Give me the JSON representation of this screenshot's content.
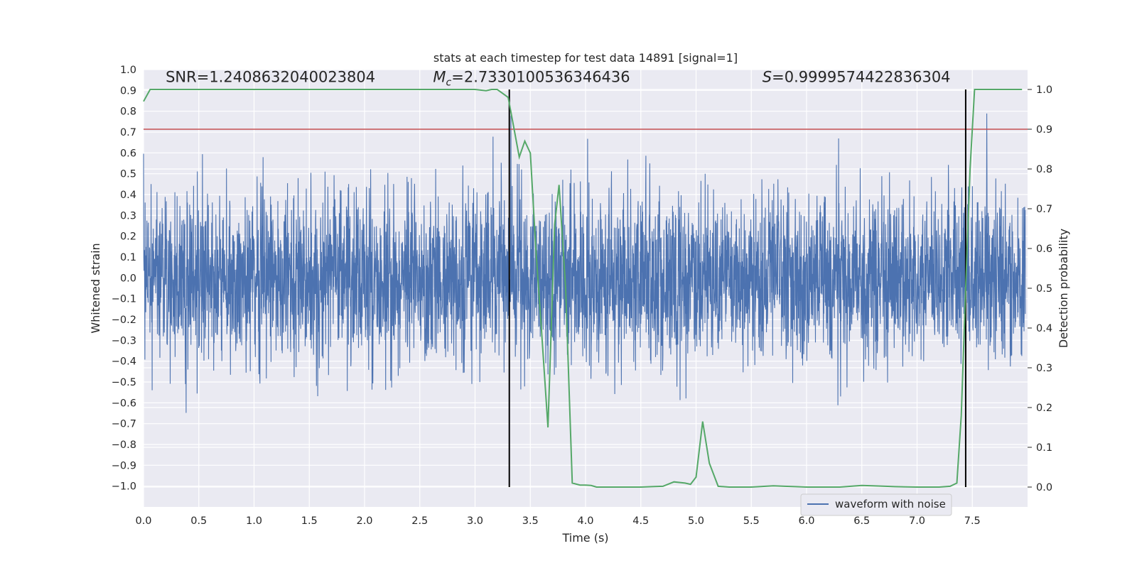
{
  "chart_data": {
    "type": "line",
    "title": "stats at each timestep for test data 14891 [signal=1]",
    "xlabel": "Time (s)",
    "ylabel": "Whitened strain",
    "ylabel_right": "Detection probability",
    "xlim": [
      0.0,
      8.0
    ],
    "ylim": [
      -1.1,
      1.0
    ],
    "ylim_right": [
      -0.05,
      1.05
    ],
    "x_ticks": [
      "0.0",
      "0.5",
      "1.0",
      "1.5",
      "2.0",
      "2.5",
      "3.0",
      "3.5",
      "4.0",
      "4.5",
      "5.0",
      "5.5",
      "6.0",
      "6.5",
      "7.0",
      "7.5"
    ],
    "x_tick_values": [
      0.0,
      0.5,
      1.0,
      1.5,
      2.0,
      2.5,
      3.0,
      3.5,
      4.0,
      4.5,
      5.0,
      5.5,
      6.0,
      6.5,
      7.0,
      7.5
    ],
    "y_ticks": [
      "1.0",
      "0.9",
      "0.8",
      "0.7",
      "0.6",
      "0.5",
      "0.4",
      "0.3",
      "0.2",
      "0.1",
      "0.0",
      "−0.1",
      "−0.2",
      "−0.3",
      "−0.4",
      "−0.5",
      "−0.6",
      "−0.7",
      "−0.8",
      "−0.9",
      "−1.0"
    ],
    "y_tick_values": [
      1.0,
      0.9,
      0.8,
      0.7,
      0.6,
      0.5,
      0.4,
      0.3,
      0.2,
      0.1,
      0.0,
      -0.1,
      -0.2,
      -0.3,
      -0.4,
      -0.5,
      -0.6,
      -0.7,
      -0.8,
      -0.9,
      -1.0
    ],
    "y_right_ticks": [
      "1.0",
      "0.9",
      "0.8",
      "0.7",
      "0.6",
      "0.5",
      "0.4",
      "0.3",
      "0.2",
      "0.1",
      "0.0"
    ],
    "y_right_tick_values": [
      1.0,
      0.9,
      0.8,
      0.7,
      0.6,
      0.5,
      0.4,
      0.3,
      0.2,
      0.1,
      0.0
    ],
    "annotations": [
      {
        "text": "SNR=1.2408632040023804",
        "x": 0.2,
        "y": 0.94
      },
      {
        "prefix": "M",
        "subscript": "c",
        "text": "=2.7330100536346436",
        "x": 2.62,
        "y": 0.94
      },
      {
        "prefix": "S",
        "text": "=0.9999574422836304",
        "x": 5.6,
        "y": 0.94
      }
    ],
    "threshold": {
      "value": 0.9,
      "axis": "right",
      "color": "#c44e52"
    },
    "vertical_lines": [
      3.31,
      7.44
    ],
    "series": [
      {
        "name": "waveform with noise",
        "axis": "left",
        "color": "#4c72b0",
        "noise_sigma": 0.2,
        "note": "dense whitened noise trace, amplitude mostly within ±0.6 with spikes to ±0.9"
      },
      {
        "name": "detection probability",
        "axis": "right",
        "color": "#55a868",
        "x": [
          0.0,
          0.06,
          0.1,
          0.2,
          0.5,
          1.0,
          1.5,
          2.0,
          2.5,
          2.8,
          3.0,
          3.1,
          3.15,
          3.2,
          3.25,
          3.3,
          3.34,
          3.4,
          3.45,
          3.5,
          3.55,
          3.6,
          3.66,
          3.72,
          3.76,
          3.82,
          3.88,
          3.95,
          4.0,
          4.05,
          4.1,
          4.15,
          4.3,
          4.5,
          4.6,
          4.7,
          4.8,
          4.9,
          4.95,
          5.0,
          5.06,
          5.12,
          5.2,
          5.3,
          5.5,
          5.7,
          5.8,
          5.9,
          6.0,
          6.3,
          6.5,
          6.6,
          6.8,
          7.0,
          7.2,
          7.3,
          7.36,
          7.4,
          7.44,
          7.48,
          7.52,
          7.6,
          7.7,
          7.8,
          7.95
        ],
        "y": [
          0.97,
          1.0,
          1.0,
          1.0,
          1.0,
          1.0,
          1.0,
          1.0,
          1.0,
          1.0,
          1.0,
          0.997,
          1.0,
          1.0,
          0.99,
          0.98,
          0.92,
          0.83,
          0.87,
          0.84,
          0.6,
          0.4,
          0.15,
          0.66,
          0.76,
          0.5,
          0.01,
          0.005,
          0.005,
          0.004,
          0.0,
          0.0,
          0.0,
          0.0,
          0.001,
          0.002,
          0.013,
          0.01,
          0.007,
          0.025,
          0.165,
          0.06,
          0.002,
          0.0,
          0.0,
          0.003,
          0.002,
          0.001,
          0.0,
          0.0,
          0.004,
          0.003,
          0.001,
          0.0,
          0.0,
          0.002,
          0.01,
          0.18,
          0.5,
          0.8,
          1.0,
          1.0,
          1.0,
          1.0,
          1.0
        ]
      }
    ],
    "legend": {
      "entries": [
        "waveform with noise"
      ],
      "position": "lower-right"
    }
  }
}
